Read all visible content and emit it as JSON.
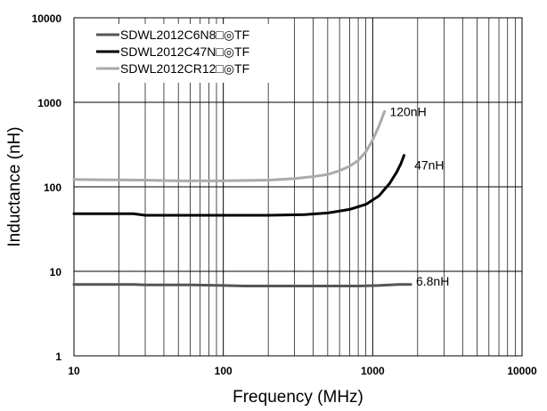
{
  "chart_data": {
    "type": "line",
    "title": "",
    "xlabel": "Frequency (MHz)",
    "ylabel": "Inductance (nH)",
    "x_scale": "log",
    "y_scale": "log",
    "xlim": [
      10,
      10000
    ],
    "ylim": [
      1,
      10000
    ],
    "x_ticks": [
      "10",
      "100",
      "1000",
      "10000"
    ],
    "y_ticks": [
      "1",
      "10",
      "100",
      "1000",
      "10000"
    ],
    "grid": true,
    "legend_position": "top-left",
    "series": [
      {
        "name": "SDWL2012C6N8□◎TF",
        "color": "#555555",
        "x": [
          10,
          25,
          30,
          60,
          100,
          140,
          200,
          400,
          800,
          1100,
          1500,
          1800
        ],
        "y": [
          7.0,
          7.0,
          6.9,
          6.9,
          6.8,
          6.7,
          6.7,
          6.7,
          6.7,
          6.8,
          7.0,
          7.0
        ]
      },
      {
        "name": "SDWL2012C47N□◎TF",
        "color": "#000000",
        "x": [
          10,
          25,
          30,
          100,
          200,
          350,
          500,
          700,
          900,
          1100,
          1300,
          1450,
          1550,
          1620
        ],
        "y": [
          48,
          48,
          46,
          46,
          46,
          47,
          49,
          54,
          62,
          78,
          110,
          150,
          190,
          235
        ]
      },
      {
        "name": "SDWL2012CR12□◎TF",
        "color": "#aaaaaa",
        "x": [
          10,
          30,
          50,
          100,
          200,
          300,
          400,
          500,
          600,
          700,
          800,
          900,
          1000,
          1100,
          1200
        ],
        "y": [
          122,
          120,
          118,
          118,
          120,
          125,
          132,
          140,
          155,
          175,
          205,
          260,
          360,
          520,
          780
        ]
      }
    ],
    "annotations": [
      {
        "text": "120nH",
        "x": 1300,
        "y": 780
      },
      {
        "text": "47nH",
        "x": 1900,
        "y": 180
      },
      {
        "text": "6.8nH",
        "x": 1950,
        "y": 7.7
      }
    ]
  }
}
